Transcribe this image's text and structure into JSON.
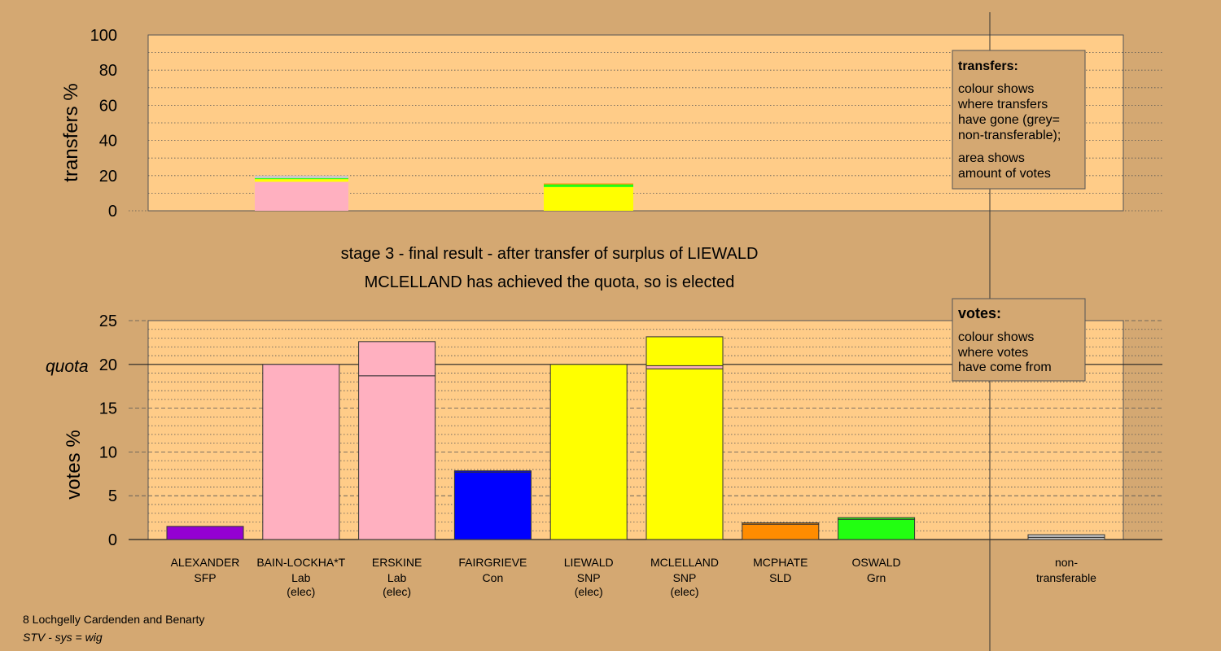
{
  "footer": {
    "constituency": "8 Lochgelly Cardenden and Benarty",
    "system": "STV - sys = wig"
  },
  "colors": {
    "background": "#d4a872",
    "plot_area": "#ffcc88",
    "SFP": "#9400d3",
    "Lab": "#ffb0c0",
    "Con": "#0000ff",
    "SNP": "#ffff00",
    "SLD": "#ff8c00",
    "Grn": "#22ff11",
    "non_transferable": "#c8c8c8"
  },
  "chart_data": [
    {
      "type": "bar",
      "name": "transfers",
      "ylabel": "transfers %",
      "ylim": [
        0,
        100
      ],
      "yticks": [
        0,
        20,
        40,
        60,
        80,
        100
      ],
      "grid": true,
      "legend": {
        "placement": "top-right",
        "title": "transfers:",
        "lines1": [
          "colour shows",
          "where transfers",
          "have gone (grey=",
          "non-transferable);"
        ],
        "lines2": [
          "area shows",
          "amount of votes"
        ]
      },
      "columns": [
        {
          "candidate": "BAIN-LOCKHA*T",
          "segments": [
            {
              "party": "Lab",
              "value": 16.5
            },
            {
              "party": "SNP",
              "value": 1.5
            },
            {
              "party": "Grn",
              "value": 0.5
            },
            {
              "party": "non_transferable",
              "value": 1.5
            }
          ]
        },
        {
          "candidate": "LIEWALD",
          "segments": [
            {
              "party": "SNP",
              "value": 13.5
            },
            {
              "party": "Grn",
              "value": 1.5
            },
            {
              "party": "SLD",
              "value": 0.5
            }
          ]
        }
      ]
    },
    {
      "type": "bar",
      "name": "votes",
      "title": "stage 3 - final result - after transfer of surplus of LIEWALD",
      "subtitle": "MCLELLAND has achieved the quota, so is elected",
      "ylabel": "votes %",
      "quota_label": "quota",
      "quota": 20,
      "ylim": [
        0,
        25
      ],
      "yticks": [
        0,
        5,
        10,
        15,
        20,
        25
      ],
      "grid": true,
      "legend": {
        "placement": "top-right",
        "title": "votes:",
        "lines1": [
          "colour shows",
          "where votes",
          "have come from"
        ]
      },
      "categories": [
        {
          "name": "ALEXANDER",
          "party": "SFP",
          "status": "",
          "segments": [
            {
              "party": "SFP",
              "value": 1.5
            }
          ]
        },
        {
          "name": "BAIN-LOCKHA*T",
          "party": "Lab",
          "status": "(elec)",
          "segments": [
            {
              "party": "Lab",
              "value": 20.0
            }
          ]
        },
        {
          "name": "ERSKINE",
          "party": "Lab",
          "status": "(elec)",
          "segments": [
            {
              "party": "Lab",
              "value": 18.7
            },
            {
              "party": "Lab",
              "value": 3.9
            }
          ]
        },
        {
          "name": "FAIRGRIEVE",
          "party": "Con",
          "status": "",
          "segments": [
            {
              "party": "Con",
              "value": 7.7
            },
            {
              "party": "Con",
              "value": 0.15
            }
          ]
        },
        {
          "name": "LIEWALD",
          "party": "SNP",
          "status": "(elec)",
          "segments": [
            {
              "party": "SNP",
              "value": 20.0
            }
          ]
        },
        {
          "name": "MCLELLAND",
          "party": "SNP",
          "status": "(elec)",
          "segments": [
            {
              "party": "SNP",
              "value": 19.5
            },
            {
              "party": "Lab",
              "value": 0.35
            },
            {
              "party": "SNP",
              "value": 3.3
            }
          ]
        },
        {
          "name": "MCPHATE",
          "party": "SLD",
          "status": "",
          "segments": [
            {
              "party": "SLD",
              "value": 1.75
            },
            {
              "party": "SLD",
              "value": 0.15
            }
          ]
        },
        {
          "name": "OSWALD",
          "party": "Grn",
          "status": "",
          "segments": [
            {
              "party": "Grn",
              "value": 2.3
            },
            {
              "party": "Grn",
              "value": 0.2
            }
          ]
        }
      ],
      "non_transferable": {
        "name": "non-",
        "name2": "transferable",
        "segments": [
          {
            "party": "non_transferable",
            "value": 0.25
          },
          {
            "party": "non_transferable",
            "value": 0.3
          }
        ]
      }
    }
  ]
}
